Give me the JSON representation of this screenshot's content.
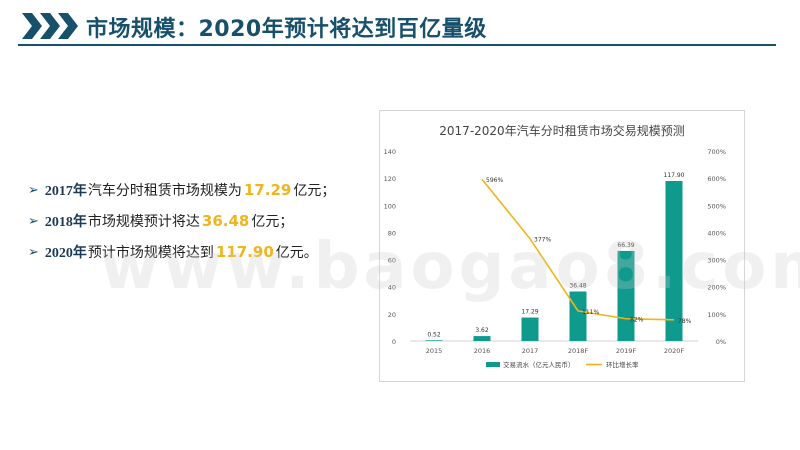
{
  "header": {
    "title": "市场规模：2020年预计将达到百亿量级"
  },
  "bullets": [
    {
      "year": "2017年",
      "text": "汽车分时租赁市场规模为",
      "value": "17.29",
      "suffix": "亿元；"
    },
    {
      "year": "2018年",
      "text": "市场规模预计将达",
      "value": "36.48",
      "suffix": "亿元；"
    },
    {
      "year": "2020年",
      "text": "预计市场规模将达到",
      "value": "117.90",
      "suffix": "亿元。"
    }
  ],
  "watermark": "www.baogao8.com",
  "colors": {
    "accent": "#17506b",
    "bar": "#0e9a8c",
    "line": "#f0b41c",
    "highlight": "#f0b41c"
  },
  "chart_data": {
    "type": "bar",
    "title": "2017-2020年汽车分时租赁市场交易规模预测",
    "categories": [
      "2015",
      "2016",
      "2017",
      "2018F",
      "2019F",
      "2020F"
    ],
    "series": [
      {
        "name": "交易流水（亿元人民币）",
        "type": "bar",
        "axis": "left",
        "values": [
          0.52,
          3.62,
          17.29,
          36.48,
          66.39,
          117.9
        ],
        "labels": [
          "0.52",
          "3.62",
          "17.29",
          "36.48",
          "66.39",
          "117.90"
        ]
      },
      {
        "name": "环比增长率",
        "type": "line",
        "axis": "right",
        "values": [
          null,
          596,
          377,
          111,
          82,
          78
        ],
        "labels": [
          "",
          "596%",
          "377%",
          "111%",
          "82%",
          "78%"
        ]
      }
    ],
    "ylim": [
      0,
      140
    ],
    "yticks": [
      "0",
      "20",
      "40",
      "60",
      "80",
      "100",
      "120",
      "140"
    ],
    "y2lim": [
      0,
      700
    ],
    "y2ticks": [
      "0%",
      "100%",
      "200%",
      "300%",
      "400%",
      "500%",
      "600%",
      "700%"
    ],
    "grid": false,
    "legend": "bottom"
  }
}
